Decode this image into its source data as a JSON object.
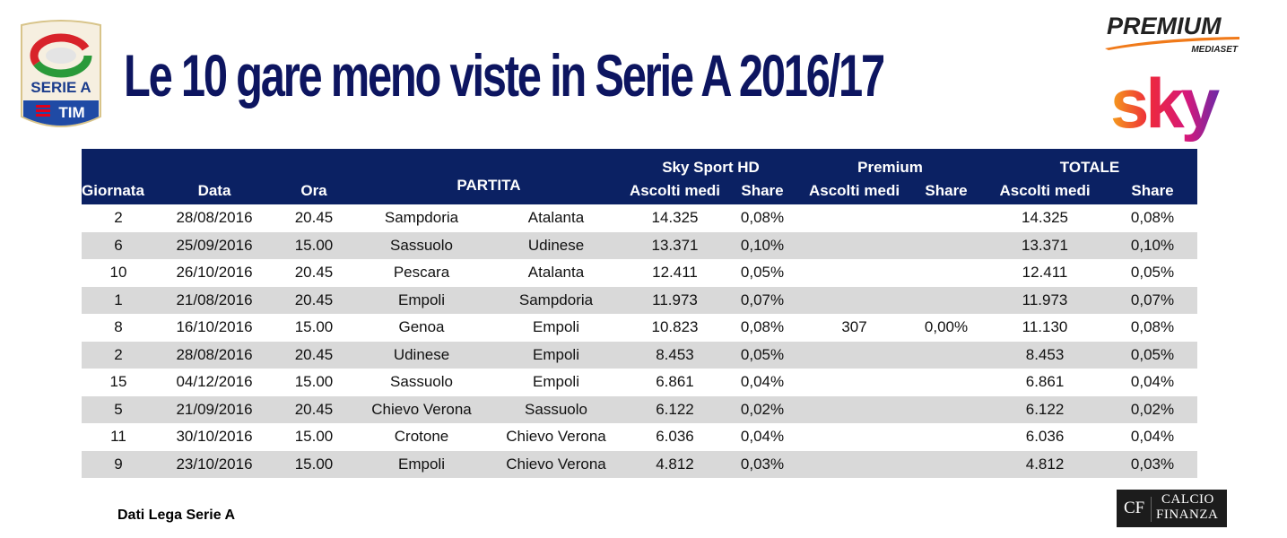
{
  "header": {
    "title": "Le 10 gare meno viste in Serie A 2016/17",
    "logos": {
      "left": "Serie A TIM",
      "premium": "PREMIUM",
      "premium_sub": "MEDIASET",
      "sky": "sky"
    }
  },
  "table": {
    "group_headers": {
      "sky": "Sky Sport HD",
      "premium": "Premium",
      "totale": "TOTALE"
    },
    "columns": {
      "giornata": "Giornata",
      "data": "Data",
      "ora": "Ora",
      "partita": "PARTITA",
      "sky_ascolti": "Ascolti medi",
      "sky_share": "Share",
      "prem_ascolti": "Ascolti medi",
      "prem_share": "Share",
      "tot_ascolti": "Ascolti medi",
      "tot_share": "Share"
    },
    "rows": [
      {
        "giornata": "2",
        "data": "28/08/2016",
        "ora": "20.45",
        "home": "Sampdoria",
        "away": "Atalanta",
        "sky_ascolti": "14.325",
        "sky_share": "0,08%",
        "prem_ascolti": "",
        "prem_share": "",
        "tot_ascolti": "14.325",
        "tot_share": "0,08%"
      },
      {
        "giornata": "6",
        "data": "25/09/2016",
        "ora": "15.00",
        "home": "Sassuolo",
        "away": "Udinese",
        "sky_ascolti": "13.371",
        "sky_share": "0,10%",
        "prem_ascolti": "",
        "prem_share": "",
        "tot_ascolti": "13.371",
        "tot_share": "0,10%"
      },
      {
        "giornata": "10",
        "data": "26/10/2016",
        "ora": "20.45",
        "home": "Pescara",
        "away": "Atalanta",
        "sky_ascolti": "12.411",
        "sky_share": "0,05%",
        "prem_ascolti": "",
        "prem_share": "",
        "tot_ascolti": "12.411",
        "tot_share": "0,05%"
      },
      {
        "giornata": "1",
        "data": "21/08/2016",
        "ora": "20.45",
        "home": "Empoli",
        "away": "Sampdoria",
        "sky_ascolti": "11.973",
        "sky_share": "0,07%",
        "prem_ascolti": "",
        "prem_share": "",
        "tot_ascolti": "11.973",
        "tot_share": "0,07%"
      },
      {
        "giornata": "8",
        "data": "16/10/2016",
        "ora": "15.00",
        "home": "Genoa",
        "away": "Empoli",
        "sky_ascolti": "10.823",
        "sky_share": "0,08%",
        "prem_ascolti": "307",
        "prem_share": "0,00%",
        "tot_ascolti": "11.130",
        "tot_share": "0,08%"
      },
      {
        "giornata": "2",
        "data": "28/08/2016",
        "ora": "20.45",
        "home": "Udinese",
        "away": "Empoli",
        "sky_ascolti": "8.453",
        "sky_share": "0,05%",
        "prem_ascolti": "",
        "prem_share": "",
        "tot_ascolti": "8.453",
        "tot_share": "0,05%"
      },
      {
        "giornata": "15",
        "data": "04/12/2016",
        "ora": "15.00",
        "home": "Sassuolo",
        "away": "Empoli",
        "sky_ascolti": "6.861",
        "sky_share": "0,04%",
        "prem_ascolti": "",
        "prem_share": "",
        "tot_ascolti": "6.861",
        "tot_share": "0,04%"
      },
      {
        "giornata": "5",
        "data": "21/09/2016",
        "ora": "20.45",
        "home": "Chievo Verona",
        "away": "Sassuolo",
        "sky_ascolti": "6.122",
        "sky_share": "0,02%",
        "prem_ascolti": "",
        "prem_share": "",
        "tot_ascolti": "6.122",
        "tot_share": "0,02%"
      },
      {
        "giornata": "11",
        "data": "30/10/2016",
        "ora": "15.00",
        "home": "Crotone",
        "away": "Chievo Verona",
        "sky_ascolti": "6.036",
        "sky_share": "0,04%",
        "prem_ascolti": "",
        "prem_share": "",
        "tot_ascolti": "6.036",
        "tot_share": "0,04%"
      },
      {
        "giornata": "9",
        "data": "23/10/2016",
        "ora": "15.00",
        "home": "Empoli",
        "away": "Chievo Verona",
        "sky_ascolti": "4.812",
        "sky_share": "0,03%",
        "prem_ascolti": "",
        "prem_share": "",
        "tot_ascolti": "4.812",
        "tot_share": "0,03%"
      }
    ]
  },
  "footer": {
    "source": "Dati Lega Serie A",
    "brand_short": "CF",
    "brand_line1": "CALCIO",
    "brand_line2": "FINANZA"
  },
  "colors": {
    "title": "#0d1560",
    "header_bg": "#0b2163",
    "stripe": "#d9d9d9"
  }
}
